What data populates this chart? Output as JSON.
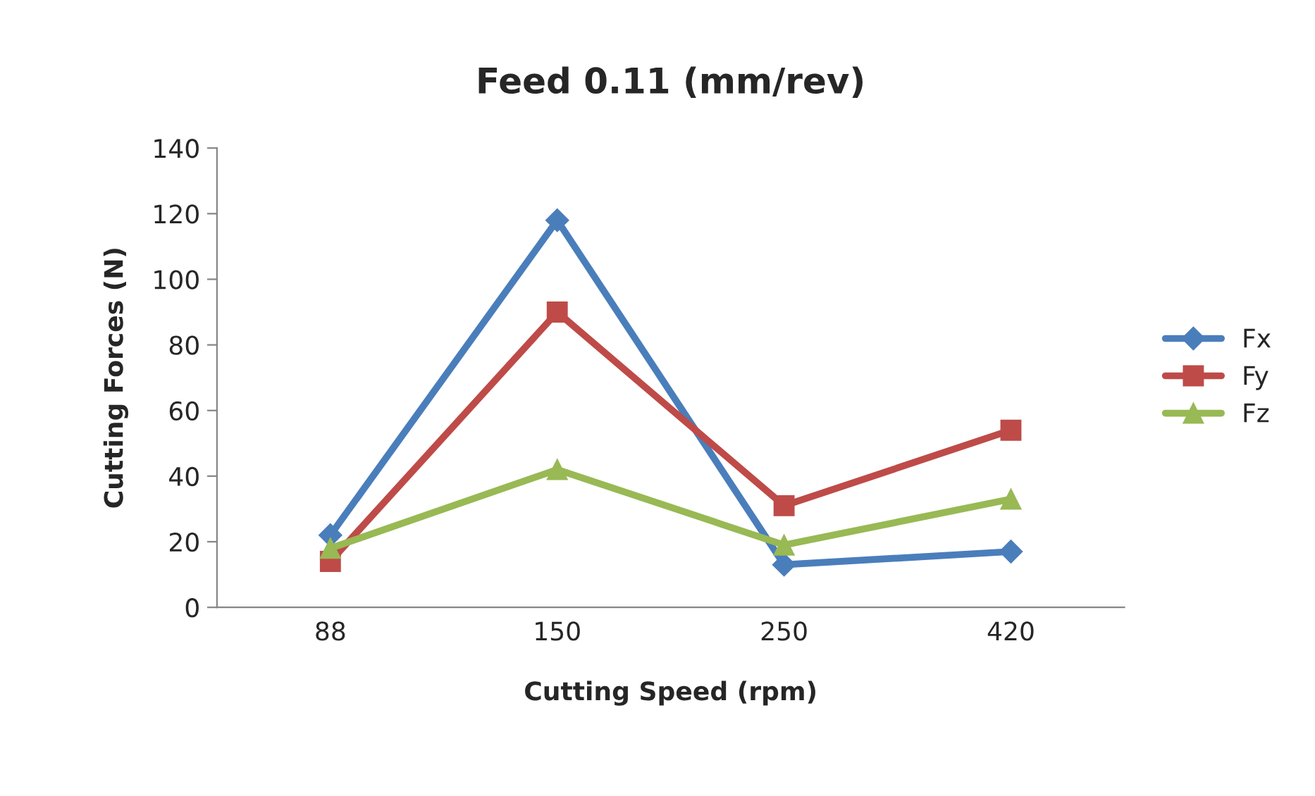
{
  "chart_data": {
    "type": "line",
    "title": "Feed 0.11 (mm/rev)",
    "xlabel": "Cutting Speed (rpm)",
    "ylabel": "Cutting Forces (N)",
    "categories": [
      "88",
      "150",
      "250",
      "420"
    ],
    "series": [
      {
        "name": "Fx",
        "color": "#4a7ebb",
        "marker": "diamond",
        "values": [
          22,
          118,
          13,
          17
        ]
      },
      {
        "name": "Fy",
        "color": "#be4b48",
        "marker": "square",
        "values": [
          14,
          90,
          31,
          54
        ]
      },
      {
        "name": "Fz",
        "color": "#98b954",
        "marker": "triangle",
        "values": [
          18,
          42,
          19,
          33
        ]
      }
    ],
    "ylim": [
      0,
      140
    ],
    "yticks": [
      0,
      20,
      40,
      60,
      80,
      100,
      120,
      140
    ],
    "grid": false,
    "legend": "right",
    "line_style": "solid"
  }
}
